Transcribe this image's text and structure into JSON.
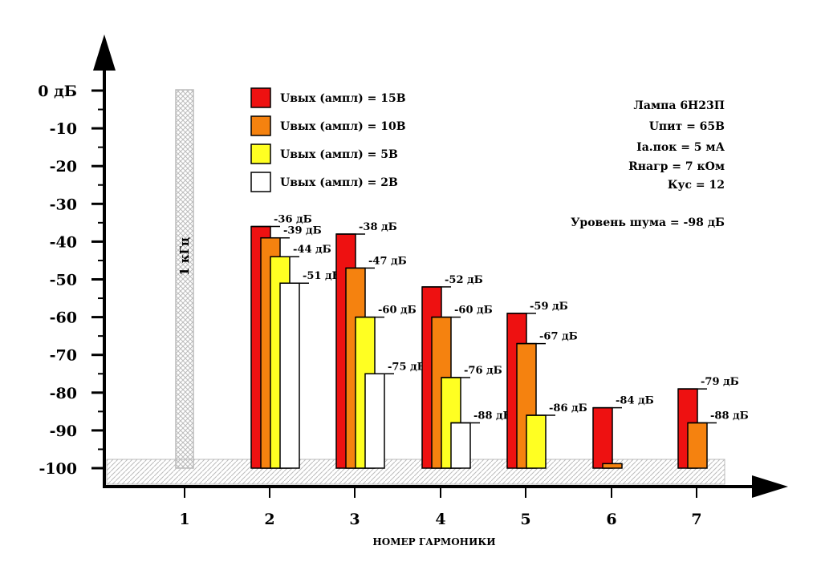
{
  "chart_data": {
    "type": "bar",
    "xlabel": "НОМЕР ГАРМОНИКИ",
    "ylabel": "",
    "ylim": [
      -100,
      0
    ],
    "y_ticks": [
      "0 дБ",
      "-10",
      "-20",
      "-30",
      "-40",
      "-50",
      "-60",
      "-70",
      "-80",
      "-90",
      "-100"
    ],
    "categories": [
      "1",
      "2",
      "3",
      "4",
      "5",
      "6",
      "7"
    ],
    "fundamental_label": "1 кГц",
    "noise_level": -98,
    "series": [
      {
        "name": "Uвых (ампл) = 15В",
        "color": "#ee1111",
        "values": [
          null,
          -36,
          -38,
          -52,
          -59,
          -84,
          -79
        ],
        "labels": [
          "",
          "-36 дБ",
          "-38 дБ",
          "-52 дБ",
          "-59 дБ",
          "-84 дБ",
          "-79 дБ"
        ]
      },
      {
        "name": "Uвых (ампл) = 10В",
        "color": "#f5820f",
        "values": [
          null,
          -39,
          -47,
          -60,
          -67,
          -98.8,
          -88
        ],
        "labels": [
          "",
          "-39 дБ",
          "-47 дБ",
          "-60 дБ",
          "-67 дБ",
          "",
          "-88 дБ"
        ]
      },
      {
        "name": "Uвых (ампл) = 5В",
        "color": "#ffff22",
        "values": [
          null,
          -44,
          -60,
          -76,
          -86,
          null,
          null
        ],
        "labels": [
          "",
          "-44 дБ",
          "-60 дБ",
          "-76 дБ",
          "-86 дБ",
          "",
          ""
        ]
      },
      {
        "name": "Uвых (ампл) = 2В",
        "color": "#ffffff",
        "values": [
          null,
          -51,
          -75,
          -88,
          null,
          null,
          null
        ],
        "labels": [
          "",
          "-51 дБ",
          "-75 дБ",
          "-88 дБ",
          "",
          "",
          ""
        ]
      }
    ],
    "info": [
      "Лампа 6Н23П",
      "Uпит = 65В",
      "Iа.пок = 5 мА",
      "Rнагр = 7 кОм",
      "Кус = 12",
      "",
      "Уровень шума = -98 дБ"
    ]
  }
}
